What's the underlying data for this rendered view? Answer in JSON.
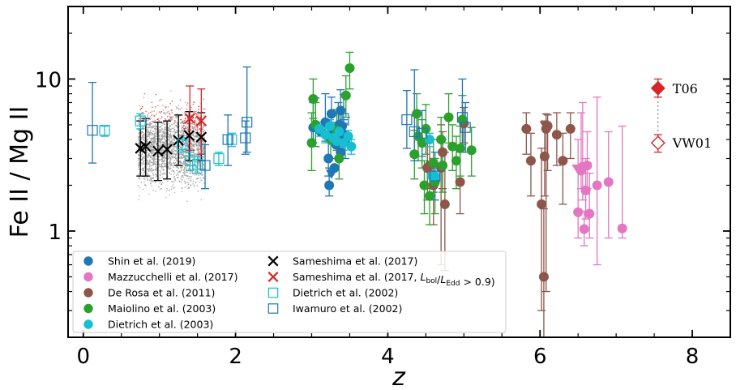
{
  "chart_data": {
    "type": "scatter",
    "xlabel": "z",
    "ylabel": "Fe II / Mg II",
    "xlim": [
      -0.2,
      8.5
    ],
    "ylim": [
      0.2,
      30
    ],
    "yscale": "log",
    "x_ticks": [
      0,
      2,
      4,
      6,
      8
    ],
    "x_tick_labels": [
      "0",
      "2",
      "4",
      "6",
      "8"
    ],
    "y_ticks": [
      1,
      10
    ],
    "y_tick_labels": [
      "1",
      "10"
    ],
    "legend_position": "lower-left",
    "colors": {
      "shin": "#1f77b4",
      "mazzucchelli": "#e377c2",
      "derosa": "#8c564b",
      "maiolino": "#2ca02c",
      "dietrich03": "#17becf",
      "sameshima": "#000000",
      "sameshima_high": "#d62728",
      "dietrich02": "#17becf",
      "iwamuro": "#1f77b4",
      "background_low": "#9a9a9a",
      "background_high": "#d62728",
      "reference": "#d62728"
    },
    "series": [
      {
        "key": "shin",
        "name": "Shin et al. (2019)",
        "marker": "filled-circle",
        "points": [
          [
            3.02,
            4.8
          ],
          [
            3.05,
            4.9
          ],
          [
            3.12,
            4.5
          ],
          [
            3.18,
            5.2
          ],
          [
            3.22,
            3.0
          ],
          [
            3.23,
            2.0
          ],
          [
            3.25,
            4.4
          ],
          [
            3.26,
            5.9
          ],
          [
            3.28,
            4.7
          ],
          [
            3.3,
            4.2
          ],
          [
            3.32,
            3.7
          ],
          [
            3.35,
            4.6
          ],
          [
            3.36,
            5.0
          ],
          [
            3.38,
            6.2
          ],
          [
            3.38,
            3.3
          ],
          [
            3.4,
            4.9
          ],
          [
            3.42,
            4.3
          ],
          [
            3.44,
            3.9
          ],
          [
            3.3,
            2.6
          ]
        ],
        "errors": [
          [
            3.02,
            3.8,
            7.0
          ],
          [
            3.05,
            3.6,
            7.5
          ],
          [
            3.18,
            3.9,
            8.0
          ],
          [
            3.22,
            2.3,
            4.0
          ],
          [
            3.23,
            1.7,
            2.6
          ],
          [
            3.26,
            4.6,
            7.6
          ],
          [
            3.35,
            3.8,
            7.0
          ],
          [
            3.38,
            4.8,
            8.5
          ],
          [
            3.4,
            3.8,
            6.3
          ],
          [
            3.42,
            3.4,
            5.4
          ],
          [
            3.44,
            3.0,
            5.0
          ]
        ]
      },
      {
        "key": "shin_limits",
        "name": "",
        "marker": "down-triangle",
        "points": [
          [
            3.26,
            2.4
          ]
        ]
      },
      {
        "key": "mazzucchelli",
        "name": "Mazzucchelli et al. (2017)",
        "marker": "filled-circle",
        "points": [
          [
            6.5,
            1.33
          ],
          [
            6.54,
            2.5
          ],
          [
            6.56,
            2.65
          ],
          [
            6.58,
            1.03
          ],
          [
            6.6,
            1.85
          ],
          [
            6.62,
            2.7
          ],
          [
            6.65,
            1.3
          ],
          [
            6.75,
            2.0
          ],
          [
            6.9,
            2.1
          ],
          [
            7.08,
            1.04
          ]
        ],
        "errors": [
          [
            6.5,
            0.9,
            4.0
          ],
          [
            6.54,
            1.9,
            6.0
          ],
          [
            6.56,
            1.6,
            7.0
          ],
          [
            6.58,
            0.8,
            1.35
          ],
          [
            6.6,
            1.2,
            3.0
          ],
          [
            6.62,
            1.9,
            4.5
          ],
          [
            6.65,
            0.9,
            2.4
          ],
          [
            6.75,
            0.6,
            7.6
          ],
          [
            6.9,
            0.9,
            4.5
          ],
          [
            7.08,
            0.9,
            4.9
          ]
        ]
      },
      {
        "key": "mazzucchelli_limits",
        "name": "",
        "marker": "down-triangle",
        "points": [
          [
            6.49,
            2.6
          ]
        ]
      },
      {
        "key": "derosa",
        "name": "De Rosa et al. (2011)",
        "marker": "filled-circle",
        "points": [
          [
            4.52,
            2.6
          ],
          [
            4.55,
            2.7
          ],
          [
            4.6,
            2.0
          ],
          [
            4.7,
            2.6
          ],
          [
            4.72,
            3.3
          ],
          [
            4.75,
            1.5
          ],
          [
            4.95,
            2.1
          ],
          [
            5.0,
            5.1
          ],
          [
            5.82,
            4.7
          ],
          [
            5.88,
            2.9
          ],
          [
            6.02,
            1.5
          ],
          [
            6.05,
            0.5
          ],
          [
            6.06,
            3.1
          ],
          [
            6.08,
            4.7
          ],
          [
            6.1,
            4.9
          ],
          [
            6.22,
            4.3
          ],
          [
            6.3,
            2.9
          ],
          [
            6.4,
            4.7
          ]
        ],
        "errors": [
          [
            4.52,
            1.6,
            4.0
          ],
          [
            4.55,
            1.9,
            3.6
          ],
          [
            4.6,
            1.1,
            3.0
          ],
          [
            4.7,
            0.6,
            5.0
          ],
          [
            4.72,
            1.9,
            4.5
          ],
          [
            4.75,
            0.55,
            3.3
          ],
          [
            4.95,
            1.3,
            3.3
          ],
          [
            5.0,
            3.8,
            6.5
          ],
          [
            5.82,
            3.2,
            6.0
          ],
          [
            5.88,
            1.7,
            4.4
          ],
          [
            6.02,
            0.3,
            3.5
          ],
          [
            6.05,
            0.15,
            1.4
          ],
          [
            6.06,
            1.7,
            5.3
          ],
          [
            6.08,
            0.4,
            5.9
          ],
          [
            6.1,
            2.5,
            5.8
          ],
          [
            6.22,
            2.7,
            6.0
          ],
          [
            6.3,
            1.5,
            4.4
          ],
          [
            6.4,
            3.0,
            6.0
          ]
        ]
      },
      {
        "key": "derosa_limits",
        "name": "",
        "marker": "down-triangle",
        "points": [
          [
            6.07,
            5.0
          ]
        ]
      },
      {
        "key": "maiolino",
        "name": "Maiolino et al. (2003)",
        "marker": "filled-circle",
        "points": [
          [
            3.0,
            3.8
          ],
          [
            3.02,
            7.4
          ],
          [
            3.05,
            5.0
          ],
          [
            3.25,
            4.0
          ],
          [
            3.33,
            4.6
          ],
          [
            3.36,
            3.0
          ],
          [
            3.45,
            7.8
          ],
          [
            3.5,
            11.8
          ],
          [
            4.35,
            3.2
          ],
          [
            4.38,
            5.9
          ],
          [
            4.4,
            4.2
          ],
          [
            4.45,
            3.8
          ],
          [
            4.5,
            4.7
          ],
          [
            4.55,
            1.7
          ],
          [
            4.6,
            2.8
          ],
          [
            4.62,
            2.1
          ],
          [
            4.7,
            4.0
          ],
          [
            4.72,
            2.7
          ],
          [
            4.8,
            5.6
          ],
          [
            4.85,
            3.6
          ],
          [
            4.9,
            2.9
          ],
          [
            4.95,
            3.5
          ],
          [
            4.98,
            5.4
          ],
          [
            5.1,
            3.4
          ],
          [
            4.48,
            2.0
          ]
        ],
        "errors": [
          [
            3.0,
            2.5,
            6.0
          ],
          [
            3.02,
            5.5,
            10.0
          ],
          [
            3.05,
            3.6,
            7.0
          ],
          [
            3.25,
            3.0,
            5.2
          ],
          [
            3.33,
            3.4,
            6.3
          ],
          [
            3.36,
            2.2,
            4.0
          ],
          [
            3.45,
            5.6,
            10.5
          ],
          [
            3.5,
            8.6,
            15.0
          ],
          [
            4.35,
            2.2,
            4.6
          ],
          [
            4.38,
            4.2,
            8.0
          ],
          [
            4.4,
            2.9,
            6.0
          ],
          [
            4.45,
            2.6,
            5.4
          ],
          [
            4.5,
            3.2,
            6.8
          ],
          [
            4.55,
            1.1,
            2.5
          ],
          [
            4.6,
            1.8,
            4.0
          ],
          [
            4.62,
            1.3,
            3.0
          ],
          [
            4.7,
            2.7,
            5.6
          ],
          [
            4.72,
            1.8,
            4.0
          ],
          [
            4.8,
            3.8,
            8.0
          ],
          [
            4.85,
            2.5,
            5.0
          ],
          [
            4.9,
            1.9,
            4.2
          ],
          [
            4.95,
            2.3,
            4.9
          ],
          [
            4.98,
            3.7,
            7.8
          ],
          [
            5.1,
            2.3,
            4.8
          ],
          [
            4.48,
            1.3,
            2.9
          ]
        ]
      },
      {
        "key": "dietrich03",
        "name": "Dietrich et al. (2003)",
        "marker": "filled-circle",
        "points": [
          [
            3.1,
            4.7
          ],
          [
            3.18,
            4.3
          ],
          [
            3.24,
            4.9
          ],
          [
            3.28,
            4.1
          ],
          [
            3.33,
            3.9
          ],
          [
            3.36,
            4.5
          ],
          [
            3.42,
            3.8
          ],
          [
            3.48,
            4.2
          ],
          [
            3.52,
            3.6
          ],
          [
            4.58,
            2.3
          ],
          [
            4.62,
            2.3
          ],
          [
            4.55,
            4.0
          ]
        ],
        "errors": [
          [
            3.1,
            4.2,
            5.2
          ],
          [
            3.18,
            3.8,
            4.8
          ],
          [
            3.24,
            4.4,
            5.4
          ],
          [
            3.28,
            3.7,
            4.6
          ],
          [
            3.33,
            3.5,
            4.3
          ],
          [
            3.36,
            4.0,
            5.0
          ],
          [
            3.42,
            3.4,
            4.2
          ],
          [
            3.48,
            3.8,
            4.6
          ],
          [
            3.52,
            3.2,
            4.0
          ],
          [
            4.58,
            2.0,
            2.6
          ],
          [
            4.62,
            2.0,
            2.6
          ],
          [
            4.55,
            3.6,
            4.4
          ]
        ]
      },
      {
        "key": "sameshima",
        "name": "Sameshima et al. (2017)",
        "marker": "x",
        "points": [
          [
            0.75,
            3.5
          ],
          [
            0.82,
            3.6
          ],
          [
            0.98,
            3.35
          ],
          [
            1.1,
            3.45
          ],
          [
            1.25,
            3.95
          ],
          [
            1.39,
            4.25
          ],
          [
            1.55,
            4.15
          ]
        ],
        "errors": [
          [
            0.75,
            2.3,
            5.3
          ],
          [
            0.82,
            2.3,
            5.5
          ],
          [
            0.98,
            2.15,
            5.2
          ],
          [
            1.1,
            2.2,
            5.3
          ],
          [
            1.25,
            2.7,
            5.8
          ],
          [
            1.39,
            2.9,
            6.1
          ],
          [
            1.55,
            2.9,
            6.0
          ]
        ]
      },
      {
        "key": "sameshima_high",
        "name": "Sameshima et al. (2017, L_bol/L_Edd > 0.9)",
        "marker": "x",
        "points": [
          [
            1.4,
            5.5
          ],
          [
            1.55,
            5.3
          ]
        ],
        "errors": [
          [
            1.4,
            3.4,
            9.0
          ],
          [
            1.55,
            3.2,
            8.6
          ]
        ]
      },
      {
        "key": "dietrich02",
        "name": "Dietrich et al. (2002)",
        "marker": "open-square",
        "points": [
          [
            0.28,
            4.6
          ],
          [
            0.75,
            5.3
          ],
          [
            1.3,
            3.7
          ],
          [
            1.4,
            2.9
          ],
          [
            1.5,
            2.75
          ],
          [
            1.78,
            3.0
          ],
          [
            1.95,
            4.0
          ]
        ],
        "errors": [
          [
            0.28,
            4.2,
            4.9
          ],
          [
            0.75,
            4.7,
            5.9
          ],
          [
            1.3,
            3.3,
            4.1
          ],
          [
            1.4,
            2.5,
            3.3
          ],
          [
            1.5,
            2.4,
            3.1
          ],
          [
            1.78,
            2.7,
            3.3
          ],
          [
            1.95,
            3.6,
            4.4
          ]
        ]
      },
      {
        "key": "iwamuro",
        "name": "Iwamuro et al. (2002)",
        "marker": "open-square",
        "points": [
          [
            0.12,
            4.6
          ],
          [
            1.6,
            2.7
          ],
          [
            1.9,
            4.0
          ],
          [
            2.13,
            4.1
          ],
          [
            2.15,
            5.2
          ],
          [
            3.42,
            5.5
          ],
          [
            4.25,
            5.4
          ],
          [
            4.35,
            4.5
          ],
          [
            4.45,
            4.4
          ],
          [
            4.62,
            2.3
          ],
          [
            4.98,
            5.6
          ],
          [
            5.02,
            4.8
          ]
        ],
        "errors": [
          [
            0.12,
            2.8,
            9.5
          ],
          [
            1.6,
            1.9,
            3.7
          ],
          [
            1.9,
            2.7,
            5.8
          ],
          [
            2.13,
            3.2,
            5.3
          ],
          [
            2.15,
            3.3,
            12.0
          ],
          [
            3.42,
            3.9,
            7.9
          ],
          [
            4.25,
            3.5,
            8.4
          ],
          [
            4.35,
            2.9,
            11.5
          ],
          [
            4.45,
            3.1,
            6.2
          ],
          [
            4.62,
            1.6,
            3.3
          ],
          [
            4.98,
            3.3,
            10.0
          ],
          [
            5.02,
            3.3,
            7.0
          ]
        ]
      }
    ],
    "references": [
      {
        "name": "T06",
        "x": 7.55,
        "y": 8.7,
        "marker": "filled-diamond",
        "err": [
          7.6,
          10.0
        ]
      },
      {
        "name": "VW01",
        "x": 7.55,
        "y": 3.8,
        "marker": "open-diamond",
        "err": [
          3.3,
          4.3
        ]
      }
    ],
    "background_cloud": {
      "x_range": [
        0.72,
        1.6
      ],
      "y_center": 3.6,
      "description_color_low": "gray",
      "description_color_high": "red"
    }
  }
}
